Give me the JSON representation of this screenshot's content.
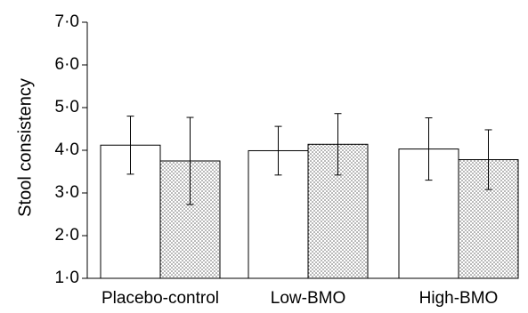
{
  "chart_data": {
    "type": "bar",
    "title": "",
    "xlabel": "",
    "ylabel": "Stool consistency",
    "ylim": [
      1.0,
      7.0
    ],
    "yticks": [
      1.0,
      2.0,
      3.0,
      4.0,
      5.0,
      6.0,
      7.0
    ],
    "ytick_labels": [
      "1·0",
      "2·0",
      "3·0",
      "4·0",
      "5·0",
      "6·0",
      "7·0"
    ],
    "categories": [
      "Placebo-control",
      "Low-BMO",
      "High-BMO"
    ],
    "series": [
      {
        "fill": "plain",
        "values": [
          4.12,
          3.99,
          4.03
        ],
        "error": [
          0.68,
          0.57,
          0.73
        ]
      },
      {
        "fill": "dotted",
        "values": [
          3.75,
          4.14,
          3.78
        ],
        "error": [
          1.02,
          0.72,
          0.7
        ]
      }
    ],
    "grid": false,
    "legend": "none",
    "colors": {
      "bar_stroke": "#000000",
      "plain_fill": "#ffffff",
      "dot_fill": "#5a5a5a",
      "axis": "#000000"
    }
  }
}
